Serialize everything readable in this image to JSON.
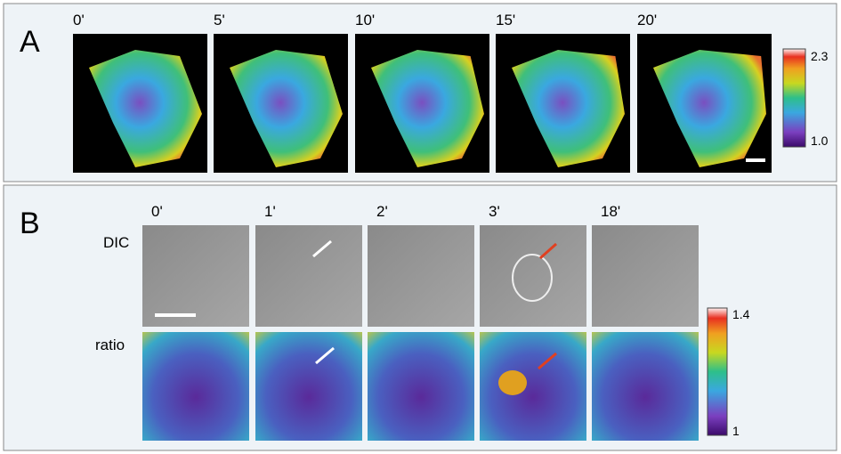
{
  "panel_a": {
    "label": "A",
    "times": [
      "0'",
      "5'",
      "10'",
      "15'",
      "20'"
    ],
    "colorbar": {
      "max": "2.3",
      "min": "1.0"
    }
  },
  "panel_b": {
    "label": "B",
    "times": [
      "0'",
      "1'",
      "2'",
      "3'",
      "18'"
    ],
    "rows": [
      "DIC",
      "ratio"
    ],
    "colorbar": {
      "max": "1.4",
      "min": "1"
    }
  }
}
